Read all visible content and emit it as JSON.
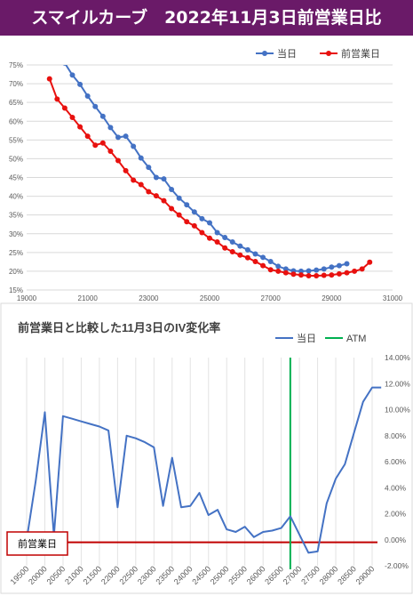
{
  "header": {
    "title": "スマイルカーブ　2022年11月3日前営業日比"
  },
  "chart_data": [
    {
      "type": "line",
      "title": "",
      "xlim": [
        19000,
        31000
      ],
      "ylim": [
        15,
        75
      ],
      "x_ticks": [
        19000,
        21000,
        23000,
        25000,
        27000,
        29000,
        31000
      ],
      "y_ticks": [
        15,
        20,
        25,
        30,
        35,
        40,
        45,
        50,
        55,
        60,
        65,
        70,
        75
      ],
      "y_tick_suffix": "%",
      "grid": true,
      "legend_position": "top-right",
      "series": [
        {
          "name": "当日",
          "color": "#4472c4",
          "x": [
            20250,
            20500,
            20750,
            21000,
            21250,
            21500,
            21750,
            22000,
            22250,
            22500,
            22750,
            23000,
            23250,
            23500,
            23750,
            24000,
            24250,
            24500,
            24750,
            25000,
            25250,
            25500,
            25750,
            26000,
            26250,
            26500,
            26750,
            27000,
            27250,
            27500,
            27750,
            28000,
            28250,
            28500,
            28750,
            29000,
            29250,
            29500
          ],
          "values": [
            75.5,
            72.3,
            69.8,
            66.7,
            63.9,
            61.3,
            58.3,
            55.7,
            56.0,
            53.3,
            50.2,
            47.7,
            45.0,
            44.6,
            41.8,
            39.5,
            37.7,
            35.8,
            34.0,
            32.9,
            30.3,
            29.0,
            27.8,
            26.7,
            25.7,
            24.6,
            23.7,
            22.6,
            21.3,
            20.6,
            20.1,
            20.0,
            20.1,
            20.3,
            20.6,
            21.1,
            21.5,
            22.0
          ]
        },
        {
          "name": "前営業日",
          "color": "#e8110f",
          "x": [
            19750,
            20000,
            20250,
            20500,
            20750,
            21000,
            21250,
            21500,
            21750,
            22000,
            22250,
            22500,
            22750,
            23000,
            23250,
            23500,
            23750,
            24000,
            24250,
            24500,
            24750,
            25000,
            25250,
            25500,
            25750,
            26000,
            26250,
            26500,
            26750,
            27000,
            27250,
            27500,
            27750,
            28000,
            28250,
            28500,
            28750,
            29000,
            29250,
            29500,
            29750,
            30000,
            30250
          ],
          "values": [
            71.3,
            65.9,
            63.5,
            61.0,
            58.5,
            56.0,
            53.6,
            54.2,
            52.0,
            49.5,
            46.8,
            44.3,
            43.1,
            41.2,
            40.1,
            38.8,
            36.7,
            35.0,
            33.2,
            32.1,
            30.3,
            28.8,
            27.8,
            26.2,
            25.2,
            24.3,
            23.6,
            22.6,
            21.5,
            20.4,
            20.0,
            19.6,
            19.2,
            19.0,
            18.8,
            18.8,
            18.9,
            19.0,
            19.3,
            19.6,
            20.0,
            20.6,
            22.4
          ]
        }
      ]
    },
    {
      "type": "line",
      "title": "前営業日と比較した11月3日のIV変化率",
      "x_tick_labels": [
        "19500",
        "20000",
        "20500",
        "21000",
        "21500",
        "22000",
        "22500",
        "23000",
        "23500",
        "24000",
        "24500",
        "25000",
        "25500",
        "26000",
        "26500",
        "27000",
        "27500",
        "28000",
        "28500",
        "29000"
      ],
      "ylim": [
        -2,
        14
      ],
      "y_ticks": [
        -2,
        0,
        2,
        4,
        6,
        8,
        10,
        12,
        14
      ],
      "y_tick_format": "percent_2dp",
      "y_axis_side": "right",
      "grid": "vertical",
      "legend_position": "top-right",
      "annotation": "前営業日",
      "series": [
        {
          "name": "当日",
          "color": "#4472c4",
          "x": [
            19500,
            19750,
            20000,
            20250,
            20500,
            20750,
            21000,
            21250,
            21500,
            21750,
            22000,
            22250,
            22500,
            22750,
            23000,
            23250,
            23500,
            23750,
            24000,
            24250,
            24500,
            24750,
            25000,
            25250,
            25500,
            25750,
            26000,
            26250,
            26500,
            26750,
            27000,
            27250,
            27500,
            27750,
            28000,
            28250,
            28500,
            28750,
            29000,
            29250
          ],
          "values": [
            0.0,
            4.5,
            9.8,
            0.3,
            9.5,
            9.3,
            9.1,
            8.9,
            8.7,
            8.4,
            2.5,
            8.0,
            7.8,
            7.5,
            7.1,
            2.6,
            6.3,
            2.5,
            2.6,
            3.6,
            1.9,
            2.3,
            0.8,
            0.6,
            1.0,
            0.2,
            0.6,
            0.7,
            0.9,
            1.8,
            0.4,
            -1.0,
            -0.9,
            2.8,
            4.7,
            5.8,
            8.2,
            10.6,
            11.7,
            11.7
          ]
        },
        {
          "name": "ATM",
          "color": "#00b050",
          "x": [
            26750
          ]
        },
        {
          "name": "前営業日",
          "color": "#c00000",
          "values": [
            -0.2
          ]
        }
      ]
    }
  ]
}
